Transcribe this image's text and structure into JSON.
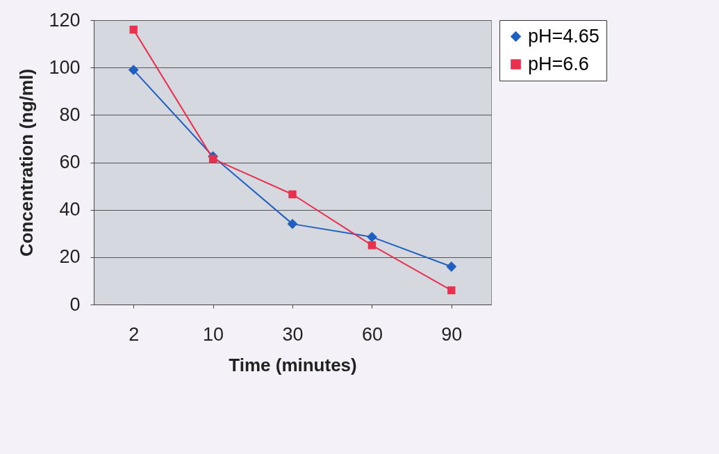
{
  "chart_data": {
    "type": "line",
    "xlabel": "Time (minutes)",
    "ylabel": "Concentration (ng/ml)",
    "categories": [
      "2",
      "10",
      "30",
      "60",
      "90"
    ],
    "series": [
      {
        "name": "pH=4.65",
        "color": "#1f5fbf",
        "marker": "diamond",
        "values": [
          99,
          62.5,
          34,
          28.5,
          16
        ]
      },
      {
        "name": "pH=6.6",
        "color": "#e8304f",
        "marker": "square",
        "values": [
          116,
          61.5,
          46.5,
          25,
          6
        ]
      }
    ],
    "ylim": [
      0,
      120
    ],
    "yticks": [
      0,
      20,
      40,
      60,
      80,
      100,
      120
    ],
    "grid": "y",
    "legend": "top right",
    "line_style": "solid"
  }
}
